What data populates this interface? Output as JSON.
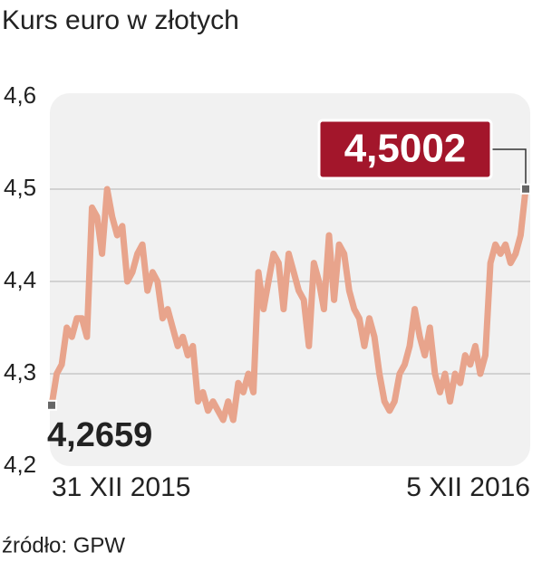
{
  "chart_data": {
    "type": "line",
    "title": "Kurs euro w złotych",
    "source": "źródło: GPW",
    "categories": [
      "31 XII 2015",
      null,
      null,
      null,
      null,
      null,
      null,
      null,
      null,
      null,
      null,
      null,
      null,
      null,
      null,
      null,
      null,
      null,
      null,
      null,
      null,
      null,
      null,
      null,
      null,
      null,
      null,
      null,
      null,
      null,
      null,
      null,
      null,
      null,
      null,
      null,
      null,
      null,
      null,
      null,
      null,
      null,
      null,
      null,
      null,
      null,
      null,
      null,
      null,
      null,
      null,
      null,
      null,
      null,
      null,
      null,
      null,
      null,
      null,
      null,
      null,
      null,
      null,
      null,
      null,
      null,
      null,
      null,
      null,
      null,
      null,
      null,
      null,
      null,
      null,
      null,
      null,
      null,
      null,
      null,
      null,
      null,
      null,
      null,
      null,
      null,
      null,
      null,
      null,
      null,
      null,
      null,
      null,
      null,
      "5 XII 2016"
    ],
    "values": [
      4.2659,
      4.3,
      4.31,
      4.35,
      4.34,
      4.36,
      4.36,
      4.34,
      4.48,
      4.47,
      4.43,
      4.5,
      4.47,
      4.45,
      4.46,
      4.4,
      4.41,
      4.43,
      4.44,
      4.39,
      4.41,
      4.4,
      4.36,
      4.37,
      4.35,
      4.33,
      4.34,
      4.32,
      4.33,
      4.27,
      4.28,
      4.26,
      4.27,
      4.26,
      4.25,
      4.27,
      4.25,
      4.29,
      4.28,
      4.3,
      4.28,
      4.41,
      4.37,
      4.4,
      4.43,
      4.42,
      4.37,
      4.43,
      4.41,
      4.39,
      4.38,
      4.33,
      4.42,
      4.4,
      4.37,
      4.45,
      4.38,
      4.44,
      4.43,
      4.39,
      4.37,
      4.36,
      4.33,
      4.36,
      4.34,
      4.3,
      4.27,
      4.26,
      4.27,
      4.3,
      4.31,
      4.33,
      4.37,
      4.34,
      4.32,
      4.35,
      4.3,
      4.28,
      4.3,
      4.27,
      4.3,
      4.29,
      4.32,
      4.31,
      4.33,
      4.3,
      4.32,
      4.42,
      4.44,
      4.43,
      4.44,
      4.42,
      4.43,
      4.45,
      4.5002
    ],
    "value_labels": [
      "4,2659",
      null,
      null,
      null,
      null,
      null,
      null,
      null,
      null,
      null,
      null,
      null,
      null,
      null,
      null,
      null,
      null,
      null,
      null,
      null,
      null,
      null,
      null,
      null,
      null,
      null,
      null,
      null,
      null,
      null,
      null,
      null,
      null,
      null,
      null,
      null,
      null,
      null,
      null,
      null,
      null,
      null,
      null,
      null,
      null,
      null,
      null,
      null,
      null,
      null,
      null,
      null,
      null,
      null,
      null,
      null,
      null,
      null,
      null,
      null,
      null,
      null,
      null,
      null,
      null,
      null,
      null,
      null,
      null,
      null,
      null,
      null,
      null,
      null,
      null,
      null,
      null,
      null,
      null,
      null,
      null,
      null,
      null,
      null,
      null,
      null,
      null,
      null,
      null,
      null,
      null,
      null,
      null,
      null,
      "4,5002"
    ],
    "color": "#e8a48c",
    "ylim": [
      4.2,
      4.6
    ],
    "yticks": [
      {
        "value": 4.2,
        "label": "4,2"
      },
      {
        "value": 4.3,
        "label": "4,3"
      },
      {
        "value": 4.4,
        "label": "4,4"
      },
      {
        "value": 4.5,
        "label": "4,5"
      },
      {
        "value": 4.6,
        "label": "4,6"
      }
    ],
    "grid": true
  }
}
